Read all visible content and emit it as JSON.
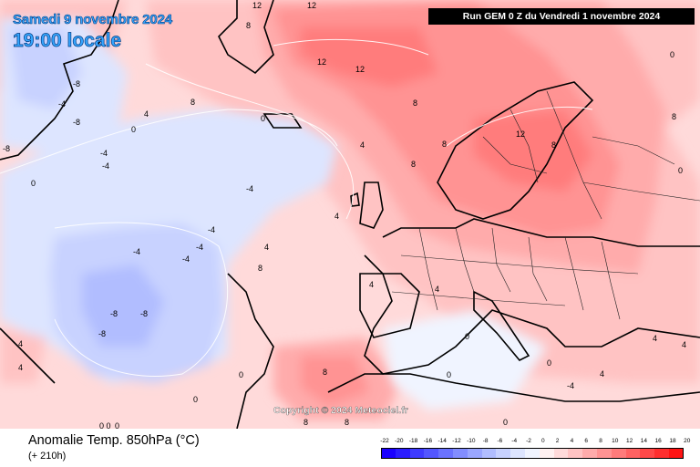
{
  "header": {
    "date": "Samedi 9 novembre 2024",
    "time": "19:00 locale",
    "run": "Run GEM 0 Z du Vendredi 1 novembre 2024"
  },
  "copyright": "Copyright © 2024 Meteociel.fr",
  "footer": {
    "title": "Anomalie Temp. 850hPa (°C)",
    "subtitle": "(+ 210h)"
  },
  "legend": {
    "labels": [
      "-22",
      "-20",
      "-18",
      "-16",
      "-14",
      "-12",
      "-10",
      "-8",
      "-6",
      "-4",
      "-2",
      "0",
      "2",
      "4",
      "6",
      "8",
      "10",
      "12",
      "14",
      "16",
      "18",
      "20"
    ],
    "colors": [
      "#1a00ff",
      "#2b1cff",
      "#3f3bff",
      "#5356ff",
      "#6a72ff",
      "#828dff",
      "#9aa6ff",
      "#b1bdff",
      "#c8d2ff",
      "#dde5ff",
      "#f0f4ff",
      "#fff1f1",
      "#ffdada",
      "#ffc3c3",
      "#ffabab",
      "#ff9393",
      "#ff7b7b",
      "#ff6262",
      "#ff4848",
      "#ff2f2f",
      "#ff1414"
    ]
  },
  "map": {
    "contour_labels": [
      "12",
      "12",
      "12",
      "12",
      "12",
      "8",
      "8",
      "8",
      "8",
      "8",
      "8",
      "8",
      "8",
      "8",
      "8",
      "8",
      "4",
      "4",
      "4",
      "4",
      "4",
      "4",
      "4",
      "4",
      "4",
      "4",
      "4",
      "0",
      "0",
      "0",
      "0",
      "0",
      "0",
      "0",
      "0",
      "0",
      "0",
      "-4",
      "-4",
      "-4",
      "-4",
      "-4",
      "-4",
      "-4",
      "-4",
      "-8",
      "-8",
      "-8",
      "-8",
      "-8",
      "-8",
      "-4",
      "0 0",
      "0",
      "0"
    ]
  },
  "colors": {
    "red_strong": "#ff6262",
    "red_mid": "#ff9393",
    "red_light": "#ffc3c3",
    "blue_light": "#dde5ff",
    "blue_mid": "#b1bdff"
  }
}
